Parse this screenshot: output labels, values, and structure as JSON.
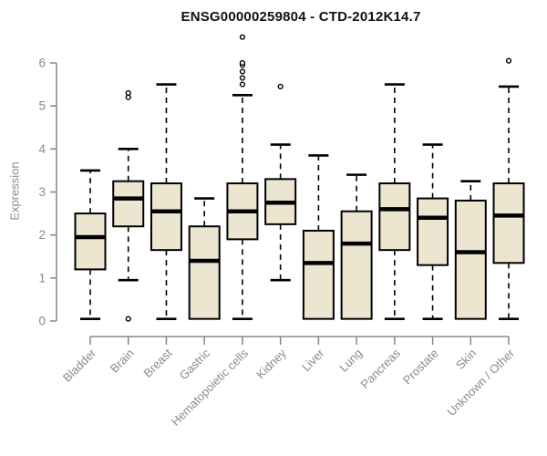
{
  "title": "ENSG00000259804 - CTD-2012K14.7",
  "y_axis_label": "Expression",
  "chart_data": {
    "type": "boxplot",
    "title": "ENSG00000259804 - CTD-2012K14.7",
    "xlabel": "",
    "ylabel": "Expression",
    "ylim": [
      0,
      6
    ],
    "yticks": [
      0,
      1,
      2,
      3,
      4,
      5,
      6
    ],
    "grid": false,
    "legend": false,
    "categories": [
      "Bladder",
      "Brain",
      "Breast",
      "Gastric",
      "Hematopoietic cells",
      "Kidney",
      "Liver",
      "Lung",
      "Pancreas",
      "Prostate",
      "Skin",
      "Unknown / Other"
    ],
    "series": [
      {
        "category": "Bladder",
        "whisker_low": 0.05,
        "q1": 1.2,
        "median": 1.95,
        "q3": 2.5,
        "whisker_high": 3.5,
        "outliers": []
      },
      {
        "category": "Brain",
        "whisker_low": 0.95,
        "q1": 2.2,
        "median": 2.85,
        "q3": 3.25,
        "whisker_high": 4.0,
        "outliers": [
          5.2,
          5.3,
          0.05
        ]
      },
      {
        "category": "Breast",
        "whisker_low": 0.05,
        "q1": 1.65,
        "median": 2.55,
        "q3": 3.2,
        "whisker_high": 5.5,
        "outliers": []
      },
      {
        "category": "Gastric",
        "whisker_low": null,
        "q1": 0.05,
        "median": 1.4,
        "q3": 2.2,
        "whisker_high": 2.85,
        "outliers": []
      },
      {
        "category": "Hematopoietic cells",
        "whisker_low": 0.05,
        "q1": 1.9,
        "median": 2.55,
        "q3": 3.2,
        "whisker_high": 5.25,
        "outliers": [
          5.5,
          5.65,
          5.8,
          5.95,
          6.0,
          6.6
        ]
      },
      {
        "category": "Kidney",
        "whisker_low": 0.95,
        "q1": 2.25,
        "median": 2.75,
        "q3": 3.3,
        "whisker_high": 4.1,
        "outliers": [
          5.45
        ]
      },
      {
        "category": "Liver",
        "whisker_low": null,
        "q1": 0.05,
        "median": 1.35,
        "q3": 2.1,
        "whisker_high": 3.85,
        "outliers": []
      },
      {
        "category": "Lung",
        "whisker_low": null,
        "q1": 0.05,
        "median": 1.8,
        "q3": 2.55,
        "whisker_high": 3.4,
        "outliers": []
      },
      {
        "category": "Pancreas",
        "whisker_low": 0.05,
        "q1": 1.65,
        "median": 2.6,
        "q3": 3.2,
        "whisker_high": 5.5,
        "outliers": []
      },
      {
        "category": "Prostate",
        "whisker_low": 0.05,
        "q1": 1.3,
        "median": 2.4,
        "q3": 2.85,
        "whisker_high": 4.1,
        "outliers": []
      },
      {
        "category": "Skin",
        "whisker_low": null,
        "q1": 0.05,
        "median": 1.6,
        "q3": 2.8,
        "whisker_high": 3.25,
        "outliers": []
      },
      {
        "category": "Unknown / Other",
        "whisker_low": 0.05,
        "q1": 1.35,
        "median": 2.45,
        "q3": 3.2,
        "whisker_high": 5.45,
        "outliers": [
          6.05
        ]
      }
    ],
    "colors": {
      "box_fill": "#ece6d0",
      "box_border": "#000000",
      "median": "#000000",
      "whisker": "#000000",
      "outlier_fill": "#ffffff",
      "axis": "#878787",
      "tick_text": "#8a8a8a",
      "title": "#111111",
      "background": "#ffffff"
    }
  }
}
